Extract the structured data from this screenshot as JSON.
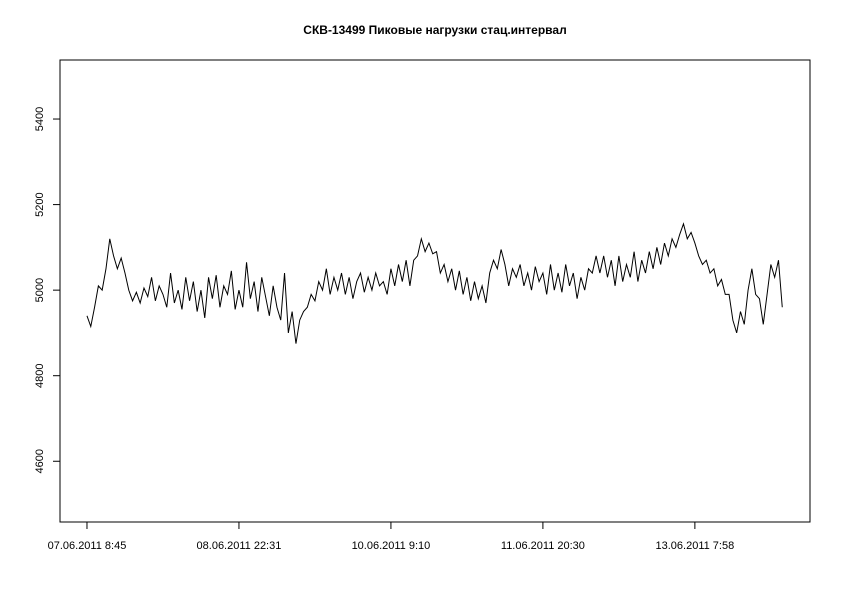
{
  "chart_data": {
    "type": "line",
    "title": "СКВ-13499 Пиковые нагрузки стац.интервал",
    "x": [
      0,
      1,
      2,
      3,
      4,
      5,
      6,
      7,
      8,
      9,
      10,
      11,
      12,
      13,
      14,
      15,
      16,
      17,
      18,
      19,
      20,
      21,
      22,
      23,
      24,
      25,
      26,
      27,
      28,
      29,
      30,
      31,
      32,
      33,
      34,
      35,
      36,
      37,
      38,
      39,
      40,
      41,
      42,
      43,
      44,
      45,
      46,
      47,
      48,
      49,
      50,
      51,
      52,
      53,
      54,
      55,
      56,
      57,
      58,
      59,
      60,
      61,
      62,
      63,
      64,
      65,
      66,
      67,
      68,
      69,
      70,
      71,
      72,
      73,
      74,
      75,
      76,
      77,
      78,
      79,
      80,
      81,
      82,
      83,
      84,
      85,
      86,
      87,
      88,
      89,
      90,
      91,
      92,
      93,
      94,
      95,
      96,
      97,
      98,
      99,
      100,
      101,
      102,
      103,
      104,
      105,
      106,
      107,
      108,
      109,
      110,
      111,
      112,
      113,
      114,
      115,
      116,
      117,
      118,
      119,
      120,
      121,
      122,
      123,
      124,
      125,
      126,
      127,
      128,
      129,
      130,
      131,
      132,
      133,
      134,
      135,
      136,
      137,
      138,
      139,
      140,
      141,
      142,
      143,
      144,
      145,
      146,
      147,
      148,
      149,
      150,
      151,
      152,
      153,
      154,
      155,
      156,
      157,
      158,
      159,
      160,
      161,
      162,
      163,
      164,
      165,
      166,
      167,
      168,
      169,
      170,
      171,
      172,
      173,
      174,
      175,
      176,
      177,
      178,
      179,
      180,
      181,
      182,
      183
    ],
    "values": [
      4940,
      4915,
      4960,
      5010,
      5000,
      5050,
      5120,
      5080,
      5050,
      5075,
      5040,
      5000,
      4975,
      4995,
      4970,
      5005,
      4985,
      5030,
      4975,
      5010,
      4990,
      4960,
      5040,
      4970,
      5000,
      4955,
      5030,
      4975,
      5020,
      4950,
      5000,
      4935,
      5030,
      4980,
      5035,
      4960,
      5010,
      4990,
      5045,
      4955,
      5000,
      4960,
      5065,
      4980,
      5020,
      4950,
      5030,
      4985,
      4940,
      5010,
      4960,
      4930,
      5040,
      4900,
      4950,
      4875,
      4930,
      4950,
      4960,
      4990,
      4975,
      5020,
      5000,
      5050,
      4990,
      5030,
      5000,
      5040,
      4990,
      5030,
      4980,
      5020,
      5040,
      4995,
      5030,
      5000,
      5040,
      5010,
      5020,
      4990,
      5050,
      5010,
      5060,
      5020,
      5070,
      5010,
      5070,
      5080,
      5120,
      5090,
      5110,
      5085,
      5090,
      5040,
      5060,
      5020,
      5050,
      5000,
      5045,
      4990,
      5030,
      4975,
      5020,
      4980,
      5010,
      4970,
      5040,
      5070,
      5050,
      5095,
      5060,
      5010,
      5050,
      5030,
      5060,
      5010,
      5040,
      5000,
      5055,
      5020,
      5040,
      4990,
      5060,
      5000,
      5040,
      4995,
      5060,
      5010,
      5040,
      4980,
      5030,
      5000,
      5050,
      5040,
      5080,
      5040,
      5080,
      5030,
      5070,
      5010,
      5080,
      5020,
      5060,
      5030,
      5090,
      5020,
      5070,
      5040,
      5090,
      5050,
      5100,
      5060,
      5110,
      5080,
      5120,
      5100,
      5130,
      5155,
      5120,
      5135,
      5110,
      5080,
      5060,
      5070,
      5040,
      5050,
      5010,
      5025,
      4990,
      4990,
      4930,
      4900,
      4950,
      4920,
      5000,
      5050,
      4990,
      4980,
      4920,
      4990,
      5060,
      5030,
      5070,
      4960
    ],
    "color": "#000000",
    "xlim": [
      -7.1,
      190.3
    ],
    "xticks": [
      {
        "value": 0,
        "label": "07.06.2011 8:45"
      },
      {
        "value": 40,
        "label": "08.06.2011 22:31"
      },
      {
        "value": 80,
        "label": "10.06.2011 9:10"
      },
      {
        "value": 120,
        "label": "11.06.2011 20:30"
      },
      {
        "value": 160,
        "label": "13.06.2011 7:58"
      }
    ],
    "ylim": [
      4458,
      5538
    ],
    "yticks": [
      4600,
      4800,
      5000,
      5200,
      5400
    ]
  }
}
